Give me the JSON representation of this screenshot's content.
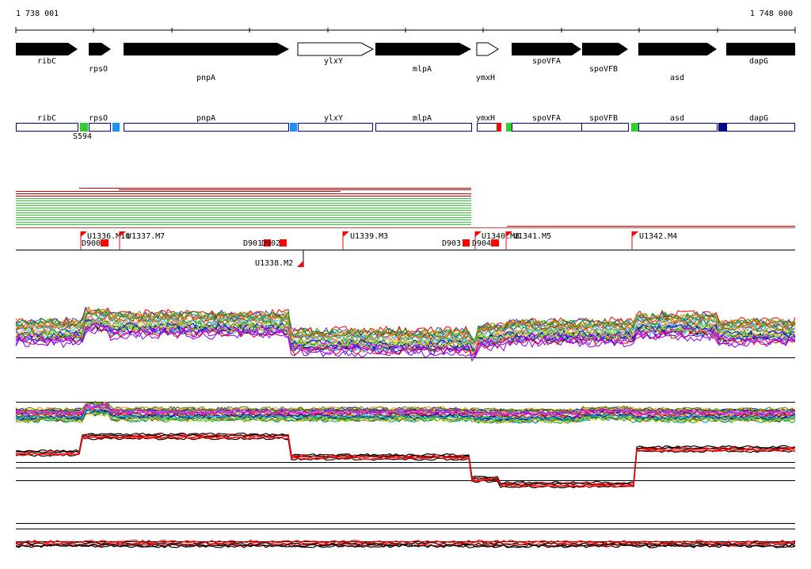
{
  "coordinates": {
    "start": "1 738 001",
    "end": "1 748 000"
  },
  "genes": [
    {
      "name": "ribC",
      "strand": "+",
      "filled": true
    },
    {
      "name": "rpsO",
      "strand": "+",
      "filled": true
    },
    {
      "name": "pnpA",
      "strand": "+",
      "filled": true
    },
    {
      "name": "ylxY",
      "strand": "+",
      "filled": false
    },
    {
      "name": "mlpA",
      "strand": "+",
      "filled": true
    },
    {
      "name": "ymxH",
      "strand": "+",
      "filled": false
    },
    {
      "name": "spoVFA",
      "strand": "+",
      "filled": true
    },
    {
      "name": "spoVFB",
      "strand": "+",
      "filled": true
    },
    {
      "name": "asd",
      "strand": "+",
      "filled": true
    },
    {
      "name": "dapG",
      "strand": "+",
      "filled": true
    }
  ],
  "gene_boxes": [
    "ribC",
    "rpsO",
    "pnpA",
    "ylxY",
    "mlpA",
    "ymxH",
    "spoVFA",
    "spoVFB",
    "asd",
    "dapG"
  ],
  "features": [
    {
      "label": "S594",
      "color": "#33cc33"
    },
    {
      "label": "",
      "color": "#1e90ff"
    },
    {
      "label": "",
      "color": "#1e90ff"
    },
    {
      "label": "",
      "color": "#ff0000"
    },
    {
      "label": "",
      "color": "#33cc33"
    },
    {
      "label": "",
      "color": "#33cc33"
    },
    {
      "label": "",
      "color": "#00008b"
    }
  ],
  "upstream_markers": [
    "U1336.M10",
    "U1337.M7",
    "U1339.M3",
    "U1340.M8",
    "U1341.M5",
    "U1342.M4"
  ],
  "downstream_markers": [
    "U1338.M2"
  ],
  "d_markers": [
    "D900",
    "D901",
    "D902",
    "D903",
    "D904"
  ],
  "colors": {
    "gene_fill": "#000000",
    "box_border": "#00008b",
    "read_red": "#cc0000",
    "read_green": "#33cc33",
    "marker_red": "#ff0000"
  }
}
